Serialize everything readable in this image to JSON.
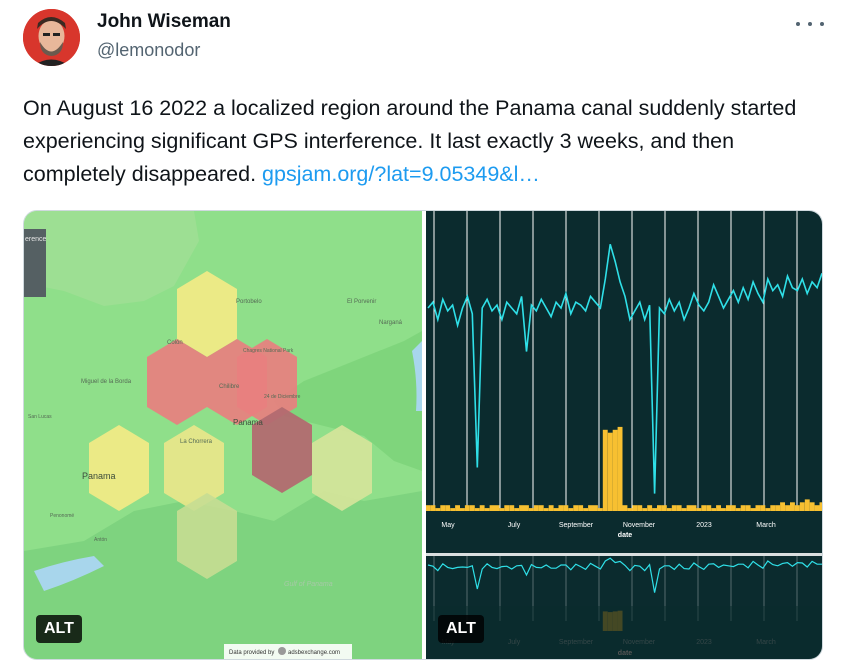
{
  "tweet": {
    "author_name": "John Wiseman",
    "author_handle": "@lemonodor",
    "text": "On August 16 2022 a localized region around the Panama canal suddenly started experiencing significant GPS interference. It last exactly 3 weeks, and then completely disappeared. ",
    "link_text": "gpsjam.org/?lat=9.05349&l…"
  },
  "map_image": {
    "legend_fragment": "erence",
    "places": {
      "portobelo": "Portobelo",
      "el_porvenir": "El Porvenir",
      "narganá": "Narganá",
      "colon": "Colón",
      "chagres": "Chagres National Park",
      "miguel": "Miguel de\nla Borda",
      "chilibre": "Chilibre",
      "san_lucas": "San Lucas",
      "24_diciembre": "24 de Diciembre",
      "la_chorrera": "La Chorrera",
      "panama_city": "Panama",
      "panama_region": "Panama",
      "penonome": "Penonomé",
      "anton": "Antón",
      "gulf": "Gulf of\nPanama"
    },
    "attribution": "Data provided by",
    "attribution_source": "adsbexchange.com",
    "alt_label": "ALT"
  },
  "chart_image": {
    "alt_label": "ALT",
    "colors": {
      "background": "#0b2b2e",
      "line": "#2fe0e8",
      "bar": "#f7c031",
      "grid": "#ffffff"
    },
    "chart_data": [
      {
        "type": "line",
        "x_tick_labels": [
          "May",
          "July",
          "September",
          "November",
          "2023",
          "March"
        ],
        "xlabel": "date",
        "ylabel": "",
        "grid": true,
        "series_line_level": [
          0.7,
          0.72,
          0.66,
          0.73,
          0.69,
          0.71,
          0.64,
          0.7,
          0.74,
          0.68,
          0.15,
          0.7,
          0.73,
          0.69,
          0.71,
          0.66,
          0.72,
          0.7,
          0.68,
          0.74,
          0.55,
          0.71,
          0.69,
          0.73,
          0.7,
          0.67,
          0.72,
          0.7,
          0.75,
          0.68,
          0.72,
          0.71,
          0.69,
          0.74,
          0.72,
          0.7,
          0.8,
          0.92,
          0.86,
          0.79,
          0.74,
          0.66,
          0.69,
          0.72,
          0.66,
          0.71,
          0.06,
          0.7,
          0.68,
          0.73,
          0.69,
          0.72,
          0.66,
          0.7,
          0.75,
          0.71,
          0.69,
          0.72,
          0.78,
          0.74,
          0.7,
          0.73,
          0.76,
          0.72,
          0.77,
          0.73,
          0.79,
          0.75,
          0.72,
          0.8,
          0.76,
          0.78,
          0.74,
          0.81,
          0.77,
          0.76,
          0.8,
          0.75,
          0.79,
          0.77,
          0.82
        ],
        "series_bar_level": [
          0.02,
          0.02,
          0.01,
          0.02,
          0.02,
          0.01,
          0.02,
          0.01,
          0.02,
          0.02,
          0.01,
          0.02,
          0.01,
          0.02,
          0.02,
          0.01,
          0.02,
          0.02,
          0.01,
          0.02,
          0.02,
          0.01,
          0.02,
          0.02,
          0.01,
          0.02,
          0.01,
          0.02,
          0.02,
          0.01,
          0.02,
          0.02,
          0.01,
          0.02,
          0.02,
          0.01,
          0.28,
          0.27,
          0.28,
          0.29,
          0.02,
          0.01,
          0.02,
          0.02,
          0.01,
          0.02,
          0.01,
          0.02,
          0.02,
          0.01,
          0.02,
          0.02,
          0.01,
          0.02,
          0.02,
          0.01,
          0.02,
          0.02,
          0.01,
          0.02,
          0.01,
          0.02,
          0.02,
          0.01,
          0.02,
          0.02,
          0.01,
          0.02,
          0.02,
          0.01,
          0.02,
          0.02,
          0.03,
          0.02,
          0.03,
          0.02,
          0.03,
          0.04,
          0.03,
          0.02,
          0.03
        ]
      },
      {
        "type": "line",
        "x_tick_labels": [
          "May",
          "July",
          "September",
          "November",
          "2023",
          "March"
        ],
        "xlabel": "date"
      }
    ]
  }
}
